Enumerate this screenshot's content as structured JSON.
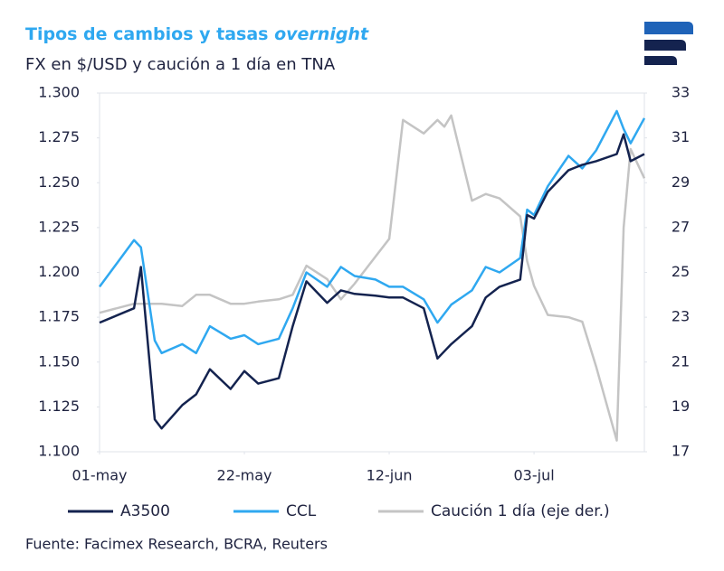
{
  "chart_data": {
    "type": "line",
    "title": "Tipos de cambios y tasas",
    "title_emphasis": "overnight",
    "subtitle": "FX en $/USD y caución a 1 día en TNA",
    "source": "Fuente: Facimex Research, BCRA, Reuters",
    "x": [
      "01-may",
      "06-may",
      "07-may",
      "09-may",
      "10-may",
      "13-may",
      "15-may",
      "17-may",
      "20-may",
      "22-may",
      "24-may",
      "27-may",
      "29-may",
      "31-may",
      "03-jun",
      "05-jun",
      "07-jun",
      "10-jun",
      "12-jun",
      "14-jun",
      "17-jun",
      "19-jun",
      "20-jun",
      "21-jun",
      "24-jun",
      "26-jun",
      "28-jun",
      "01-jul",
      "02-jul",
      "03-jul",
      "05-jul",
      "08-jul",
      "10-jul",
      "12-jul",
      "15-jul",
      "16-jul",
      "17-jul",
      "19-jul"
    ],
    "xlim": [
      "01-may",
      "19-jul"
    ],
    "xticks": [
      "01-may",
      "22-may",
      "12-jun",
      "03-jul"
    ],
    "ylim": [
      1100,
      1300
    ],
    "yticks": [
      {
        "value": 1100,
        "label": "1.100"
      },
      {
        "value": 1125,
        "label": "1.125"
      },
      {
        "value": 1150,
        "label": "1.150"
      },
      {
        "value": 1175,
        "label": "1.175"
      },
      {
        "value": 1200,
        "label": "1.200"
      },
      {
        "value": 1225,
        "label": "1.225"
      },
      {
        "value": 1250,
        "label": "1.250"
      },
      {
        "value": 1275,
        "label": "1.275"
      },
      {
        "value": 1300,
        "label": "1.300"
      }
    ],
    "y2lim": [
      17,
      33
    ],
    "y2ticks": [
      17,
      19,
      21,
      23,
      25,
      27,
      29,
      31,
      33
    ],
    "series": [
      {
        "name": "A3500",
        "color": "#14234f",
        "values": [
          1172,
          1180,
          1203,
          1118,
          1113,
          1126,
          1132,
          1146,
          1135,
          1145,
          1138,
          1141,
          1170,
          1195,
          1183,
          1190,
          1188,
          1187,
          1186,
          1186,
          1180,
          1152,
          1156,
          1160,
          1170,
          1186,
          1192,
          1196,
          1232,
          1230,
          1245,
          1257,
          1260,
          1262,
          1266,
          1277,
          1262,
          1266
        ]
      },
      {
        "name": "CCL",
        "color": "#2fa8f0",
        "values": [
          1192,
          1218,
          1214,
          1162,
          1155,
          1160,
          1155,
          1170,
          1163,
          1165,
          1160,
          1163,
          1180,
          1200,
          1192,
          1203,
          1198,
          1196,
          1192,
          1192,
          1185,
          1172,
          1177,
          1182,
          1190,
          1203,
          1200,
          1208,
          1235,
          1232,
          1248,
          1265,
          1258,
          1268,
          1290,
          1280,
          1272,
          1286
        ]
      },
      {
        "name": "Caución 1 día (eje der.)",
        "color": "#c4c4c4",
        "axis": "y2",
        "values": [
          23.2,
          23.6,
          23.6,
          23.6,
          23.6,
          23.5,
          24.0,
          24.0,
          23.6,
          23.6,
          23.7,
          23.8,
          24.0,
          25.3,
          24.7,
          23.8,
          24.5,
          25.7,
          26.5,
          31.8,
          31.2,
          31.8,
          31.5,
          32.0,
          28.2,
          28.5,
          28.3,
          27.5,
          25.5,
          24.4,
          23.1,
          23.0,
          22.8,
          20.8,
          17.5,
          27.0,
          30.5,
          29.2
        ]
      }
    ]
  }
}
